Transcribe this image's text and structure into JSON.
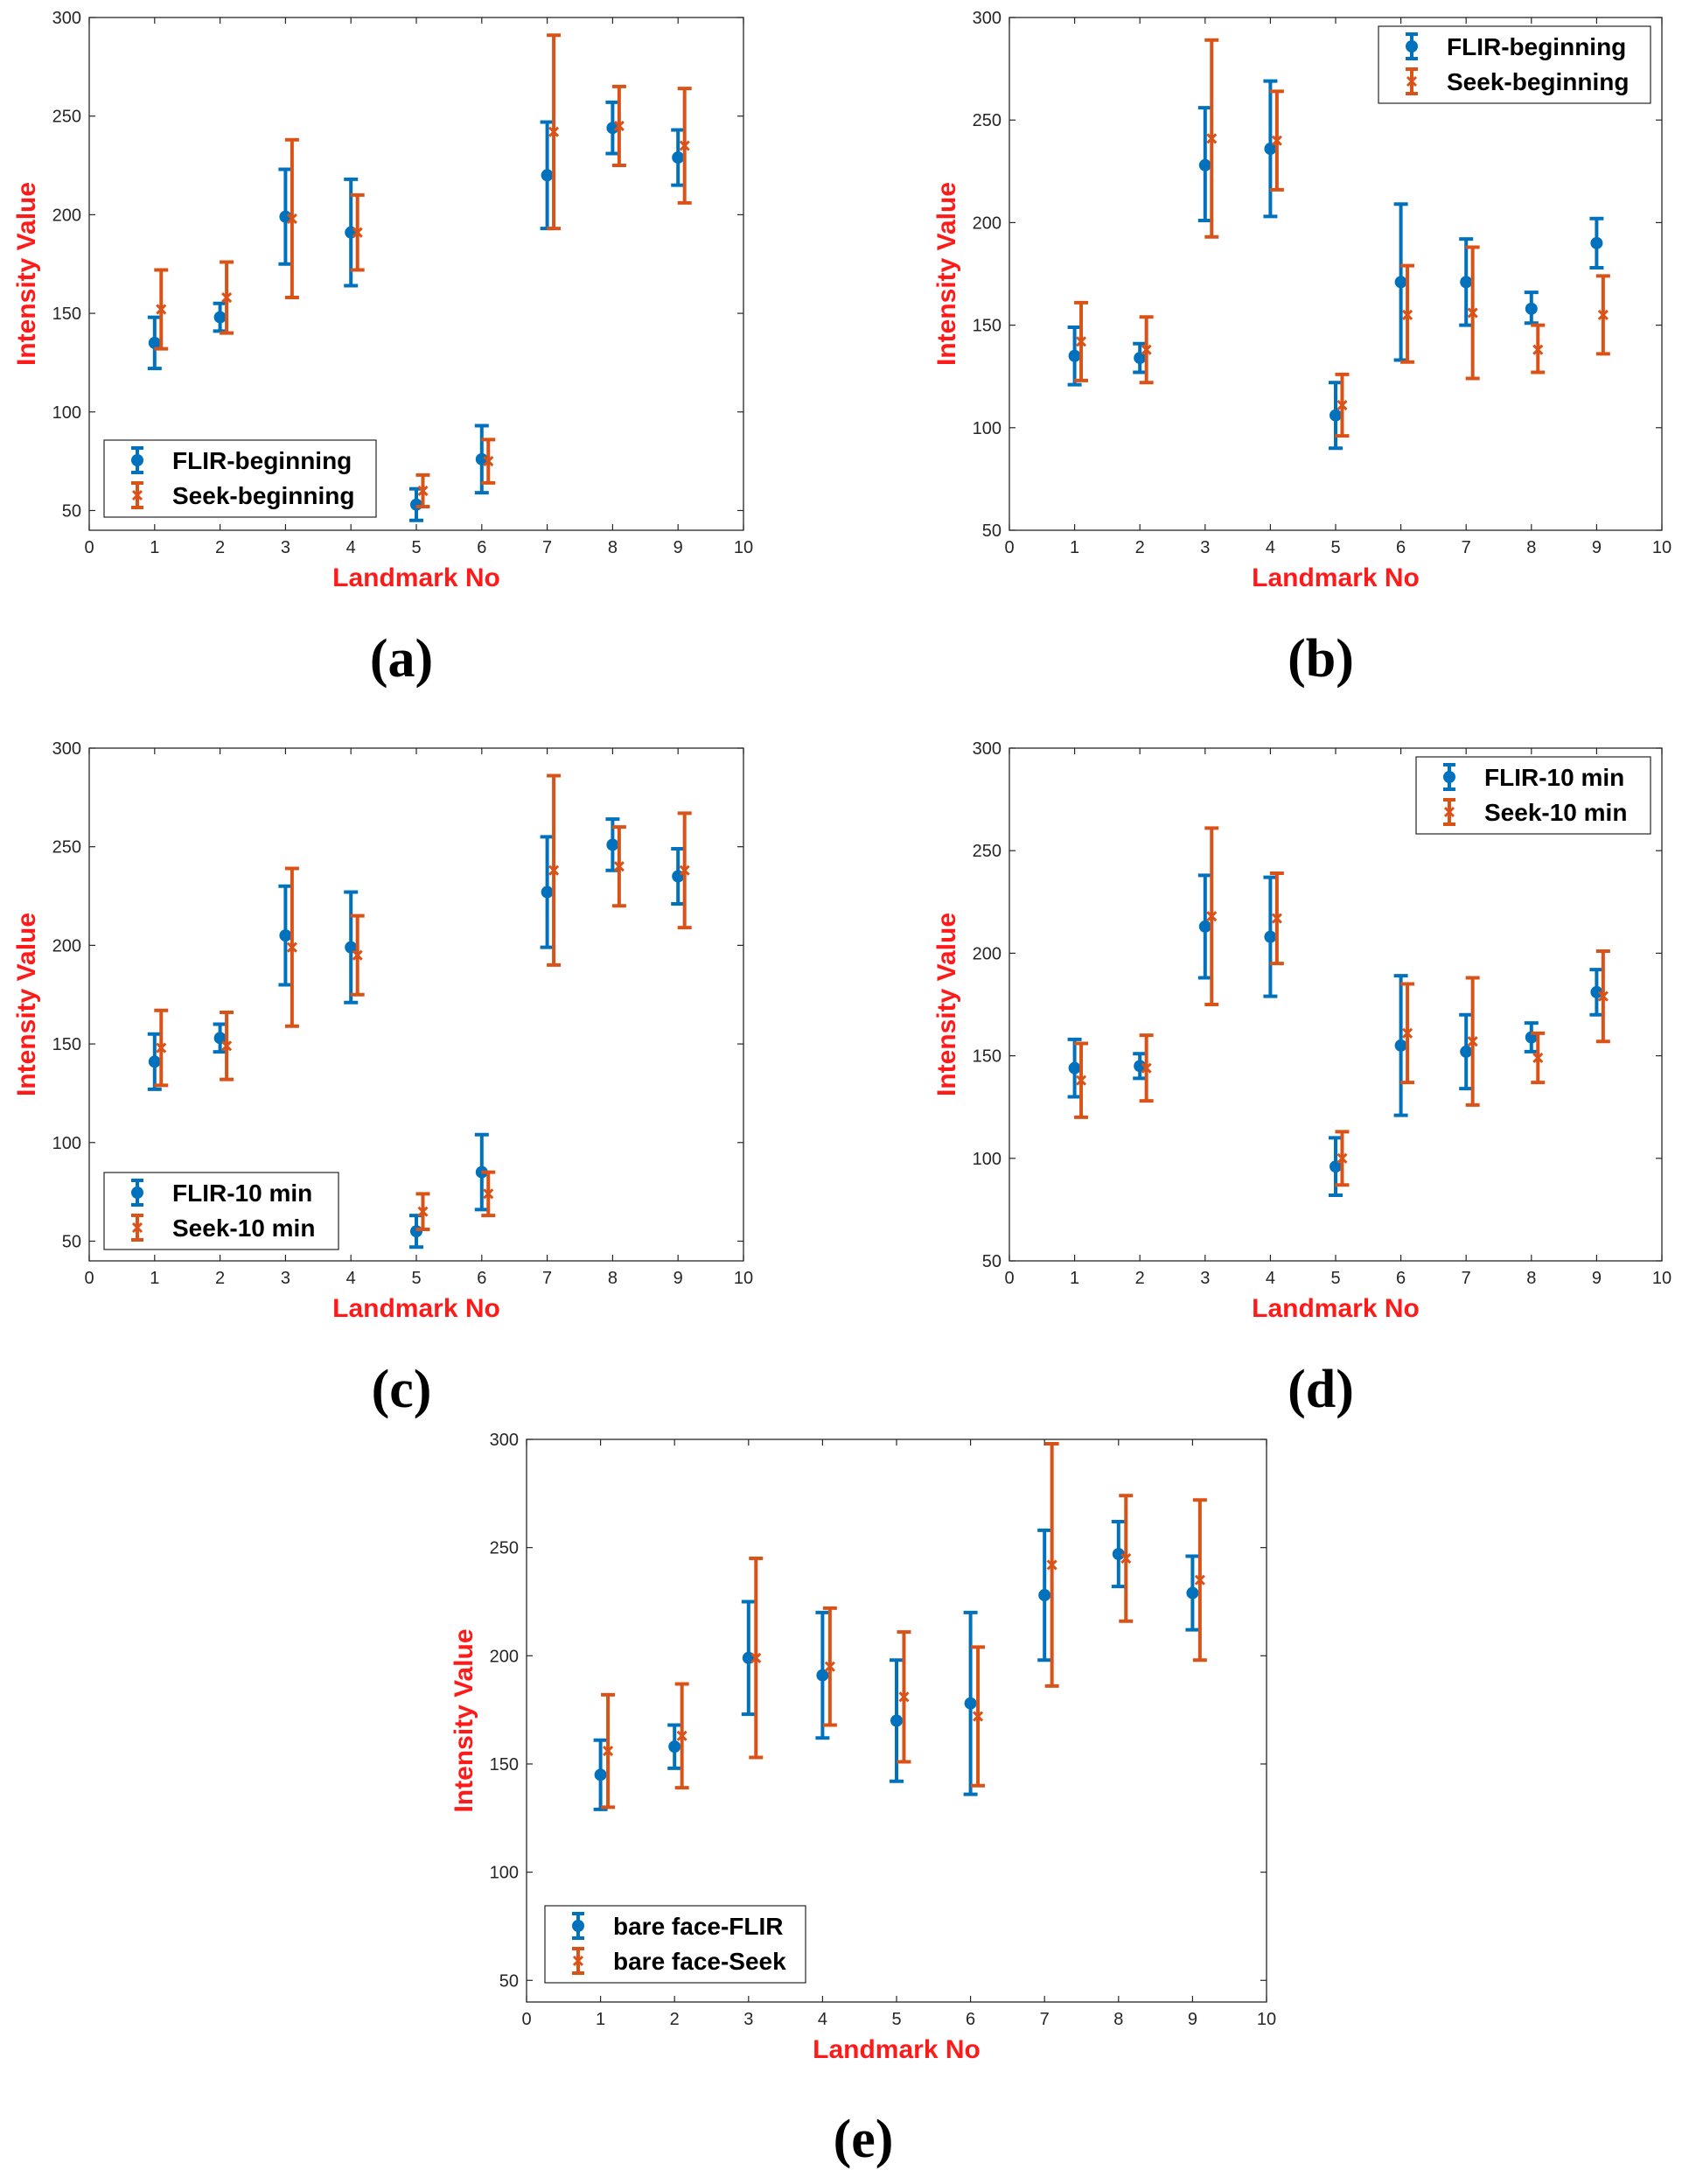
{
  "chart_data": [
    {
      "type": "scatter",
      "panel_label": "(a)",
      "xlabel": "Landmark No",
      "ylabel": "Intensity Value",
      "xlim": [
        0,
        10
      ],
      "ylim": [
        40,
        300
      ],
      "xticks": [
        0,
        1,
        2,
        3,
        4,
        5,
        6,
        7,
        8,
        9,
        10
      ],
      "yticks": [
        50,
        100,
        150,
        200,
        250,
        300
      ],
      "legend_position": "bottom-left",
      "series": [
        {
          "name": "FLIR-beginning",
          "color": "#0072BD",
          "marker": "circle",
          "x": [
            1,
            2,
            3,
            4,
            5,
            6,
            7,
            8,
            9
          ],
          "values": [
            135,
            148,
            199,
            191,
            53,
            76,
            220,
            244,
            229
          ],
          "lower": [
            122,
            141,
            175,
            164,
            45,
            59,
            193,
            231,
            215
          ],
          "upper": [
            148,
            155,
            223,
            218,
            61,
            93,
            247,
            257,
            243
          ]
        },
        {
          "name": "Seek-beginning",
          "color": "#D95319",
          "marker": "x",
          "x": [
            1.1,
            2.1,
            3.1,
            4.1,
            5.1,
            6.1,
            7.1,
            8.1,
            9.1
          ],
          "values": [
            152,
            158,
            198,
            191,
            60,
            75,
            242,
            245,
            235
          ],
          "lower": [
            132,
            140,
            158,
            172,
            52,
            64,
            193,
            225,
            206
          ],
          "upper": [
            172,
            176,
            238,
            210,
            68,
            86,
            291,
            265,
            264
          ]
        }
      ]
    },
    {
      "type": "scatter",
      "panel_label": "(b)",
      "xlabel": "Landmark No",
      "ylabel": "Intensity Value",
      "xlim": [
        0,
        10
      ],
      "ylim": [
        50,
        300
      ],
      "xticks": [
        0,
        1,
        2,
        3,
        4,
        5,
        6,
        7,
        8,
        9,
        10
      ],
      "yticks": [
        50,
        100,
        150,
        200,
        250,
        300
      ],
      "legend_position": "top-right",
      "series": [
        {
          "name": "FLIR-beginning",
          "color": "#0072BD",
          "marker": "circle",
          "x": [
            1,
            2,
            3,
            4,
            5,
            6,
            7,
            8,
            9
          ],
          "values": [
            135,
            134,
            228,
            236,
            106,
            171,
            171,
            158,
            190
          ],
          "lower": [
            121,
            127,
            201,
            203,
            90,
            133,
            150,
            151,
            178
          ],
          "upper": [
            149,
            141,
            256,
            269,
            122,
            209,
            192,
            166,
            202
          ]
        },
        {
          "name": "Seek-beginning",
          "color": "#D95319",
          "marker": "x",
          "x": [
            1.1,
            2.1,
            3.1,
            4.1,
            5.1,
            6.1,
            7.1,
            8.1,
            9.1
          ],
          "values": [
            142,
            138,
            241,
            240,
            111,
            155,
            156,
            138,
            155
          ],
          "lower": [
            123,
            122,
            193,
            216,
            96,
            132,
            124,
            127,
            136
          ],
          "upper": [
            161,
            154,
            289,
            264,
            126,
            179,
            188,
            150,
            174
          ]
        }
      ]
    },
    {
      "type": "scatter",
      "panel_label": "(c)",
      "xlabel": "Landmark No",
      "ylabel": "Intensity Value",
      "xlim": [
        0,
        10
      ],
      "ylim": [
        40,
        300
      ],
      "xticks": [
        0,
        1,
        2,
        3,
        4,
        5,
        6,
        7,
        8,
        9,
        10
      ],
      "yticks": [
        50,
        100,
        150,
        200,
        250,
        300
      ],
      "legend_position": "bottom-left",
      "series": [
        {
          "name": "FLIR-10 min",
          "color": "#0072BD",
          "marker": "circle",
          "x": [
            1,
            2,
            3,
            4,
            5,
            6,
            7,
            8,
            9
          ],
          "values": [
            141,
            153,
            205,
            199,
            55,
            85,
            227,
            251,
            235
          ],
          "lower": [
            127,
            146,
            180,
            171,
            47,
            66,
            199,
            238,
            221
          ],
          "upper": [
            155,
            160,
            230,
            227,
            63,
            104,
            255,
            264,
            249
          ]
        },
        {
          "name": "Seek-10 min",
          "color": "#D95319",
          "marker": "x",
          "x": [
            1.1,
            2.1,
            3.1,
            4.1,
            5.1,
            6.1,
            7.1,
            8.1,
            9.1
          ],
          "values": [
            148,
            149,
            199,
            195,
            65,
            74,
            238,
            240,
            238
          ],
          "lower": [
            129,
            132,
            159,
            175,
            56,
            63,
            190,
            220,
            209
          ],
          "upper": [
            167,
            166,
            239,
            215,
            74,
            85,
            286,
            260,
            267
          ]
        }
      ]
    },
    {
      "type": "scatter",
      "panel_label": "(d)",
      "xlabel": "Landmark No",
      "ylabel": "Intensity Value",
      "xlim": [
        0,
        10
      ],
      "ylim": [
        50,
        300
      ],
      "xticks": [
        0,
        1,
        2,
        3,
        4,
        5,
        6,
        7,
        8,
        9,
        10
      ],
      "yticks": [
        50,
        100,
        150,
        200,
        250,
        300
      ],
      "legend_position": "top-right",
      "series": [
        {
          "name": "FLIR-10 min",
          "color": "#0072BD",
          "marker": "circle",
          "x": [
            1,
            2,
            3,
            4,
            5,
            6,
            7,
            8,
            9
          ],
          "values": [
            144,
            145,
            213,
            208,
            96,
            155,
            152,
            159,
            181
          ],
          "lower": [
            130,
            139,
            188,
            179,
            82,
            121,
            134,
            152,
            170
          ],
          "upper": [
            158,
            151,
            238,
            237,
            110,
            189,
            170,
            166,
            192
          ]
        },
        {
          "name": "Seek-10 min",
          "color": "#D95319",
          "marker": "x",
          "x": [
            1.1,
            2.1,
            3.1,
            4.1,
            5.1,
            6.1,
            7.1,
            8.1,
            9.1
          ],
          "values": [
            138,
            144,
            218,
            217,
            100,
            161,
            157,
            149,
            179
          ],
          "lower": [
            120,
            128,
            175,
            195,
            87,
            137,
            126,
            137,
            157
          ],
          "upper": [
            156,
            160,
            261,
            239,
            113,
            185,
            188,
            161,
            201
          ]
        }
      ]
    },
    {
      "type": "scatter",
      "panel_label": "(e)",
      "xlabel": "Landmark No",
      "ylabel": "Intensity Value",
      "xlim": [
        0,
        10
      ],
      "ylim": [
        40,
        300
      ],
      "xticks": [
        0,
        1,
        2,
        3,
        4,
        5,
        6,
        7,
        8,
        9,
        10
      ],
      "yticks": [
        50,
        100,
        150,
        200,
        250,
        300
      ],
      "legend_position": "bottom-left",
      "series": [
        {
          "name": "bare face-FLIR",
          "color": "#0072BD",
          "marker": "circle",
          "x": [
            1,
            2,
            3,
            4,
            5,
            6,
            7,
            8,
            9
          ],
          "values": [
            145,
            158,
            199,
            191,
            170,
            178,
            228,
            247,
            229
          ],
          "lower": [
            129,
            148,
            173,
            162,
            142,
            136,
            198,
            232,
            212
          ],
          "upper": [
            161,
            168,
            225,
            220,
            198,
            220,
            258,
            262,
            246
          ]
        },
        {
          "name": "bare face-Seek",
          "color": "#D95319",
          "marker": "x",
          "x": [
            1.1,
            2.1,
            3.1,
            4.1,
            5.1,
            6.1,
            7.1,
            8.1,
            9.1
          ],
          "values": [
            156,
            163,
            199,
            195,
            181,
            172,
            242,
            245,
            235
          ],
          "lower": [
            130,
            139,
            153,
            168,
            151,
            140,
            186,
            216,
            198
          ],
          "upper": [
            182,
            187,
            245,
            222,
            211,
            204,
            298,
            274,
            272
          ]
        }
      ]
    }
  ]
}
